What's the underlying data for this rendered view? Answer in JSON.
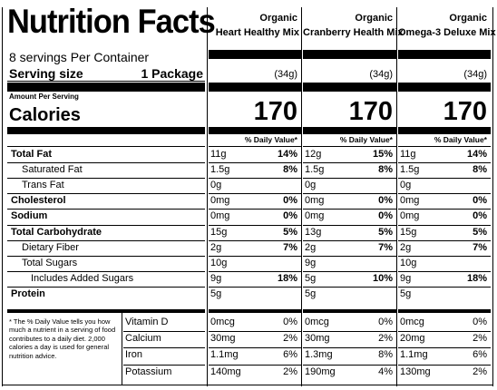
{
  "title": "Nutrition Facts",
  "servings": "8 servings Per Container",
  "serving_size_label": "Serving size",
  "serving_size_value": "1 Package",
  "amount_per_serving": "Amount Per Serving",
  "calories_label": "Calories",
  "dv_header": "% Daily Value*",
  "footnote": "* The % Daily Value tells you how  much a nutrient in a serving of food contributes to a daily diet. 2,000 calories a day is used for general nutrition advice.",
  "nutrients": [
    {
      "label": "Total Fat",
      "bold": true,
      "indent": 0
    },
    {
      "label": "Saturated Fat",
      "bold": false,
      "indent": 1
    },
    {
      "label": "Trans Fat",
      "bold": false,
      "indent": 1
    },
    {
      "label": "Cholesterol",
      "bold": true,
      "indent": 0
    },
    {
      "label": "Sodium",
      "bold": true,
      "indent": 0
    },
    {
      "label": "Total Carbohydrate",
      "bold": true,
      "indent": 0
    },
    {
      "label": "Dietary Fiber",
      "bold": false,
      "indent": 1
    },
    {
      "label": "Total Sugars",
      "bold": false,
      "indent": 1
    },
    {
      "label": "Includes Added Sugars",
      "bold": false,
      "indent": 2
    },
    {
      "label": "Protein",
      "bold": true,
      "indent": 0
    }
  ],
  "vitamins": [
    "Vitamin D",
    "Calcium",
    "Iron",
    "Potassium"
  ],
  "products": [
    {
      "name_line1": "Organic",
      "name_line2": "Heart Healthy Mix",
      "serving": "(34g)",
      "calories": "170",
      "nutrients": [
        {
          "amount": "11g",
          "dv": "14%"
        },
        {
          "amount": "1.5g",
          "dv": "8%"
        },
        {
          "amount": "0g",
          "dv": ""
        },
        {
          "amount": "0mg",
          "dv": "0%"
        },
        {
          "amount": "0mg",
          "dv": "0%"
        },
        {
          "amount": "15g",
          "dv": "5%"
        },
        {
          "amount": "2g",
          "dv": "7%"
        },
        {
          "amount": "10g",
          "dv": ""
        },
        {
          "amount": "9g",
          "dv": "18%"
        },
        {
          "amount": "5g",
          "dv": ""
        }
      ],
      "vitamins": [
        {
          "amount": "0mcg",
          "dv": "0%"
        },
        {
          "amount": "30mg",
          "dv": "2%"
        },
        {
          "amount": "1.1mg",
          "dv": "6%"
        },
        {
          "amount": "140mg",
          "dv": "2%"
        }
      ]
    },
    {
      "name_line1": "Organic",
      "name_line2": "Cranberry Health Mix",
      "serving": "(34g)",
      "calories": "170",
      "nutrients": [
        {
          "amount": "12g",
          "dv": "15%"
        },
        {
          "amount": "1.5g",
          "dv": "8%"
        },
        {
          "amount": "0g",
          "dv": ""
        },
        {
          "amount": "0mg",
          "dv": "0%"
        },
        {
          "amount": "0mg",
          "dv": "0%"
        },
        {
          "amount": "13g",
          "dv": "5%"
        },
        {
          "amount": "2g",
          "dv": "7%"
        },
        {
          "amount": "9g",
          "dv": ""
        },
        {
          "amount": "5g",
          "dv": "10%"
        },
        {
          "amount": "5g",
          "dv": ""
        }
      ],
      "vitamins": [
        {
          "amount": "0mcg",
          "dv": "0%"
        },
        {
          "amount": "30mg",
          "dv": "2%"
        },
        {
          "amount": "1.3mg",
          "dv": "8%"
        },
        {
          "amount": "190mg",
          "dv": "4%"
        }
      ]
    },
    {
      "name_line1": "Organic",
      "name_line2": "Omega-3 Deluxe Mix",
      "serving": "(34g)",
      "calories": "170",
      "nutrients": [
        {
          "amount": "11g",
          "dv": "14%"
        },
        {
          "amount": "1.5g",
          "dv": "8%"
        },
        {
          "amount": "0g",
          "dv": ""
        },
        {
          "amount": "0mg",
          "dv": "0%"
        },
        {
          "amount": "0mg",
          "dv": "0%"
        },
        {
          "amount": "15g",
          "dv": "5%"
        },
        {
          "amount": "2g",
          "dv": "7%"
        },
        {
          "amount": "10g",
          "dv": ""
        },
        {
          "amount": "9g",
          "dv": "18%"
        },
        {
          "amount": "5g",
          "dv": ""
        }
      ],
      "vitamins": [
        {
          "amount": "0mcg",
          "dv": "0%"
        },
        {
          "amount": "20mg",
          "dv": "2%"
        },
        {
          "amount": "1.1mg",
          "dv": "6%"
        },
        {
          "amount": "130mg",
          "dv": "2%"
        }
      ]
    }
  ]
}
